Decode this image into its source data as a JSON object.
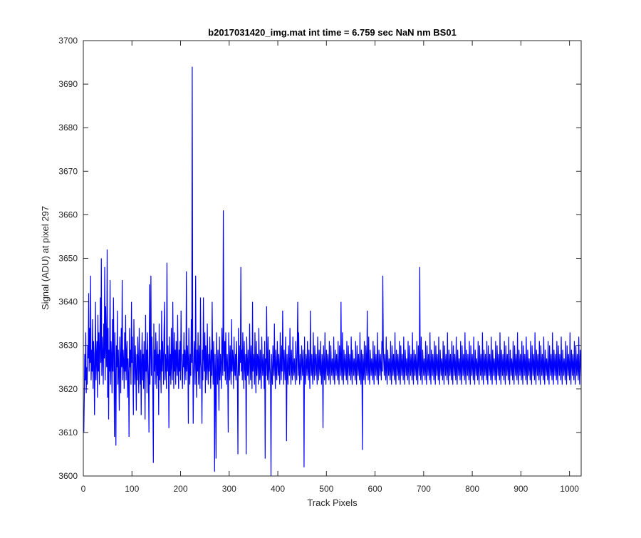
{
  "chart_data": {
    "type": "line",
    "title": "b2017031420_img.mat int time = 6.759 sec  NaN nm BS01",
    "xlabel": "Track Pixels",
    "ylabel": "Signal (ADU) at pixel 297",
    "xlim": [
      0,
      1024
    ],
    "ylim": [
      3600,
      3700
    ],
    "xticks": [
      0,
      100,
      200,
      300,
      400,
      500,
      600,
      700,
      800,
      900,
      1000
    ],
    "yticks": [
      3600,
      3610,
      3620,
      3630,
      3640,
      3650,
      3660,
      3670,
      3680,
      3690,
      3700
    ],
    "grid": false,
    "box": true,
    "legend": "none",
    "series_color": "#0000ff",
    "series": [
      {
        "x_start": 1,
        "x_step": 1,
        "baseline": 3625,
        "noise_amplitude": 8,
        "values": [
          3610,
          3618,
          3628,
          3622,
          3633,
          3619,
          3625,
          3621,
          3630,
          3627,
          3642,
          3624,
          3634,
          3626,
          3646,
          3622,
          3629,
          3624,
          3636,
          3620,
          3631,
          3628,
          3614,
          3625,
          3640,
          3622,
          3627,
          3631,
          3618,
          3637,
          3624,
          3633,
          3621,
          3629,
          3641,
          3626,
          3650,
          3623,
          3632,
          3628,
          3621,
          3635,
          3627,
          3648,
          3622,
          3639,
          3630,
          3625,
          3652,
          3618,
          3634,
          3613,
          3629,
          3624,
          3645,
          3621,
          3631,
          3627,
          3619,
          3636,
          3624,
          3641,
          3628,
          3609,
          3633,
          3622,
          3607,
          3630,
          3625,
          3638,
          3621,
          3629,
          3623,
          3615,
          3632,
          3627,
          3619,
          3634,
          3625,
          3645,
          3622,
          3629,
          3626,
          3620,
          3633,
          3624,
          3637,
          3622,
          3628,
          3631,
          3618,
          3627,
          3623,
          3609,
          3634,
          3625,
          3629,
          3621,
          3640,
          3626,
          3632,
          3622,
          3614,
          3636,
          3627,
          3621,
          3630,
          3624,
          3615,
          3628,
          3622,
          3632,
          3626,
          3619,
          3634,
          3625,
          3621,
          3629,
          3614,
          3626,
          3633,
          3622,
          3628,
          3620,
          3631,
          3625,
          3613,
          3637,
          3624,
          3629,
          3619,
          3633,
          3626,
          3622,
          3610,
          3644,
          3621,
          3628,
          3646,
          3623,
          3632,
          3627,
          3618,
          3603,
          3635,
          3624,
          3629,
          3621,
          3633,
          3627,
          3620,
          3631,
          3623,
          3628,
          3614,
          3635,
          3622,
          3629,
          3625,
          3619,
          3638,
          3624,
          3631,
          3627,
          3621,
          3633,
          3640,
          3622,
          3628,
          3625,
          3620,
          3649,
          3624,
          3630,
          3626,
          3611,
          3632,
          3623,
          3628,
          3621,
          3634,
          3625,
          3622,
          3640,
          3627,
          3620,
          3633,
          3624,
          3629,
          3621,
          3631,
          3626,
          3623,
          3637,
          3625,
          3620,
          3629,
          3624,
          3631,
          3622,
          3638,
          3627,
          3624,
          3620,
          3628,
          3625,
          3633,
          3621,
          3629,
          3626,
          3622,
          3647,
          3624,
          3630,
          3627,
          3612,
          3634,
          3625,
          3621,
          3628,
          3623,
          3636,
          3626,
          3694,
          3629,
          3612,
          3624,
          3631,
          3627,
          3621,
          3646,
          3625,
          3618,
          3629,
          3624,
          3633,
          3621,
          3627,
          3630,
          3620,
          3641,
          3626,
          3624,
          3612,
          3629,
          3622,
          3641,
          3627,
          3624,
          3633,
          3619,
          3630,
          3626,
          3622,
          3635,
          3625,
          3621,
          3628,
          3624,
          3632,
          3626,
          3620,
          3629,
          3623,
          3640,
          3627,
          3621,
          3631,
          3625,
          3601,
          3628,
          3623,
          3604,
          3633,
          3626,
          3621,
          3629,
          3624,
          3615,
          3632,
          3622,
          3628,
          3625,
          3620,
          3634,
          3627,
          3623,
          3661,
          3628,
          3624,
          3631,
          3622,
          3633,
          3626,
          3621,
          3628,
          3624,
          3610,
          3633,
          3627,
          3622,
          3630,
          3625,
          3621,
          3636,
          3624,
          3629,
          3627,
          3620,
          3632,
          3625,
          3623,
          3628,
          3622,
          3631,
          3626,
          3621,
          3605,
          3634,
          3625,
          3623,
          3630,
          3626,
          3648,
          3624,
          3629,
          3622,
          3633,
          3627,
          3620,
          3631,
          3625,
          3622,
          3628,
          3605,
          3632,
          3626,
          3623,
          3629,
          3624,
          3621,
          3635,
          3627,
          3622,
          3630,
          3625,
          3620,
          3640,
          3624,
          3628,
          3626,
          3621,
          3633,
          3625,
          3619,
          3631,
          3623,
          3628,
          3627,
          3621,
          3634,
          3625,
          3622,
          3629,
          3624,
          3620,
          3632,
          3626,
          3623,
          3628,
          3625,
          3620,
          3631,
          3604,
          3627,
          3623,
          3639,
          3626,
          3622,
          3632,
          3624,
          3621,
          3629,
          3625,
          3623,
          3600,
          3628,
          3624,
          3621,
          3630,
          3626,
          3623,
          3635,
          3625,
          3620,
          3629,
          3624,
          3622,
          3631,
          3626,
          3623,
          3628,
          3624,
          3621,
          3633,
          3625,
          3622,
          3630,
          3624,
          3638,
          3627,
          3621,
          3629,
          3625,
          3622,
          3632,
          3626,
          3608,
          3628,
          3624,
          3621,
          3630,
          3625,
          3623,
          3634,
          3626,
          3621,
          3629,
          3624,
          3622,
          3632,
          3625,
          3623,
          3627,
          3624,
          3621,
          3631,
          3626,
          3622,
          3629,
          3640,
          3623,
          3633,
          3625,
          3621,
          3628,
          3624,
          3622,
          3630,
          3626,
          3623,
          3629,
          3625,
          3602,
          3632,
          3624,
          3621,
          3628,
          3626,
          3623,
          3631,
          3625,
          3622,
          3629,
          3624,
          3620,
          3638,
          3626,
          3623,
          3628,
          3624,
          3621,
          3633,
          3625,
          3622,
          3630,
          3627,
          3623,
          3628,
          3624,
          3621,
          3632,
          3626,
          3622,
          3629,
          3625,
          3623,
          3631,
          3624,
          3621,
          3628,
          3626,
          3611,
          3630,
          3625,
          3622,
          3633,
          3624,
          3621,
          3629,
          3626,
          3623,
          3628,
          3625,
          3622,
          3631,
          3624,
          3621,
          3630,
          3626,
          3623,
          3627,
          3625,
          3622,
          3632,
          3624,
          3621,
          3629,
          3626,
          3623,
          3628,
          3625,
          3622,
          3631,
          3624,
          3621,
          3630,
          3626,
          3623,
          3640,
          3625,
          3622,
          3633,
          3624,
          3621,
          3629,
          3626,
          3623,
          3628,
          3625,
          3622,
          3631,
          3624,
          3621,
          3630,
          3626,
          3623,
          3628,
          3625,
          3622,
          3632,
          3624,
          3621,
          3629,
          3626,
          3623,
          3627,
          3625,
          3622,
          3631,
          3624,
          3621,
          3630,
          3626,
          3623,
          3628,
          3625,
          3622,
          3633,
          3624,
          3621,
          3629,
          3626,
          3606,
          3628,
          3625,
          3622,
          3631,
          3624,
          3621,
          3630,
          3626,
          3623,
          3638,
          3625,
          3622,
          3632,
          3624,
          3621,
          3629,
          3626,
          3623,
          3627,
          3625,
          3622,
          3631,
          3624,
          3621,
          3630,
          3626,
          3623,
          3628,
          3625,
          3622,
          3633,
          3624,
          3621,
          3629,
          3626,
          3623,
          3628,
          3625,
          3622,
          3631,
          3624,
          3646,
          3630,
          3626,
          3623,
          3628,
          3625,
          3622,
          3632,
          3624,
          3621,
          3629,
          3626,
          3623,
          3627,
          3625,
          3622,
          3631,
          3624,
          3621,
          3630,
          3626,
          3623,
          3628,
          3625,
          3622,
          3633,
          3624,
          3621,
          3629,
          3626,
          3623,
          3628,
          3625,
          3622,
          3631,
          3624,
          3621,
          3630,
          3626,
          3623,
          3628,
          3625,
          3622,
          3632,
          3624,
          3621,
          3629,
          3626,
          3623,
          3627,
          3625,
          3622,
          3631,
          3624,
          3621,
          3630,
          3626,
          3623,
          3628,
          3625,
          3622,
          3633,
          3624,
          3621,
          3629,
          3626,
          3623,
          3628,
          3625,
          3622,
          3631,
          3624,
          3621,
          3630,
          3626,
          3623,
          3648,
          3625,
          3622,
          3632,
          3624,
          3621,
          3629,
          3626,
          3623,
          3627,
          3625,
          3622,
          3631,
          3624,
          3621,
          3630,
          3626,
          3623,
          3628,
          3625,
          3622,
          3633,
          3624,
          3621,
          3629,
          3626,
          3623,
          3628,
          3625,
          3622,
          3631,
          3624,
          3621,
          3630,
          3626,
          3623,
          3628,
          3625,
          3622,
          3632,
          3624,
          3621,
          3629,
          3626,
          3623,
          3627,
          3625,
          3622,
          3631,
          3624,
          3621,
          3630,
          3626,
          3623,
          3628,
          3625,
          3622,
          3633,
          3624,
          3621,
          3629,
          3626,
          3623,
          3628,
          3625,
          3622,
          3631,
          3624,
          3621,
          3630,
          3626,
          3623,
          3628,
          3625,
          3622,
          3632,
          3624,
          3621,
          3629,
          3626,
          3623,
          3627,
          3625,
          3622,
          3631,
          3624,
          3621,
          3630,
          3626,
          3623,
          3628,
          3625,
          3622,
          3633,
          3624,
          3621,
          3629,
          3626,
          3623,
          3628,
          3625,
          3622,
          3631,
          3624,
          3621,
          3630,
          3626,
          3623,
          3628,
          3625,
          3622,
          3632,
          3624,
          3621,
          3629,
          3626,
          3623,
          3627,
          3625,
          3622,
          3631,
          3624,
          3621,
          3630,
          3626,
          3623,
          3628,
          3625,
          3622,
          3633,
          3624,
          3621,
          3629,
          3626,
          3623,
          3628,
          3625,
          3622,
          3631,
          3624,
          3621,
          3630,
          3626,
          3623,
          3628,
          3625,
          3622,
          3632,
          3624,
          3621,
          3629,
          3626,
          3623,
          3627,
          3625,
          3622,
          3631,
          3624,
          3621,
          3630,
          3626,
          3623,
          3628,
          3625,
          3622,
          3633,
          3624,
          3621,
          3629,
          3626,
          3623,
          3628,
          3625,
          3622,
          3631,
          3624,
          3621,
          3630,
          3626,
          3623,
          3628,
          3625,
          3622,
          3632,
          3624,
          3621,
          3629,
          3626,
          3623,
          3627,
          3625,
          3622,
          3631,
          3624,
          3621,
          3630,
          3626,
          3623,
          3628,
          3625,
          3622,
          3633,
          3624,
          3621,
          3629,
          3626,
          3623,
          3628,
          3625,
          3622,
          3631,
          3624,
          3621,
          3630,
          3626,
          3623,
          3628,
          3625,
          3622,
          3632,
          3624,
          3621,
          3629,
          3626,
          3623,
          3627,
          3625,
          3622,
          3631,
          3624,
          3621,
          3630,
          3626,
          3623,
          3628,
          3625,
          3622,
          3633,
          3624,
          3621,
          3629,
          3626,
          3623,
          3628,
          3625,
          3622,
          3631,
          3624,
          3621,
          3630,
          3626,
          3623,
          3628,
          3625,
          3622,
          3632,
          3624,
          3621,
          3629,
          3626,
          3623,
          3627,
          3625,
          3622,
          3631,
          3624,
          3621,
          3630,
          3626,
          3623,
          3628,
          3625,
          3622,
          3633,
          3624,
          3621,
          3629,
          3626,
          3623,
          3628,
          3625,
          3622,
          3631,
          3624,
          3621,
          3630,
          3626,
          3623,
          3628,
          3625,
          3622,
          3632,
          3624,
          3621,
          3629,
          3626,
          3623,
          3627,
          3625,
          3622,
          3631,
          3624,
          3621,
          3630,
          3626,
          3623,
          3628,
          3625,
          3622,
          3633,
          3624,
          3621,
          3629,
          3626,
          3623,
          3628,
          3625,
          3622,
          3631,
          3624,
          3621,
          3630,
          3626,
          3623,
          3628,
          3625,
          3622,
          3632,
          3624,
          3621,
          3629,
          3626,
          3623,
          3627,
          3625,
          3622,
          3631,
          3624
        ]
      }
    ]
  }
}
